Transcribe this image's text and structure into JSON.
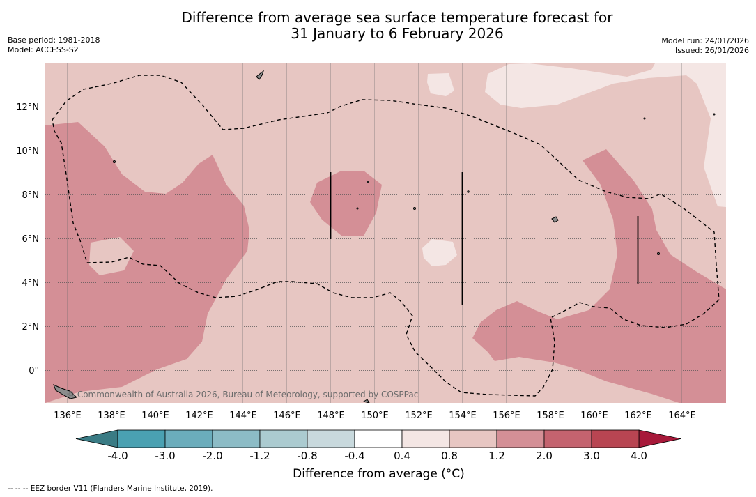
{
  "title": {
    "line1": "Difference from average sea surface temperature forecast for",
    "line2": "31 January to 6 February 2026"
  },
  "meta": {
    "base_period": "Base period: 1981-2018",
    "model": "Model: ACCESS-S2",
    "model_run": "Model run: 24/01/2026",
    "issued": "Issued: 26/01/2026"
  },
  "map": {
    "lon_range": [
      135.0,
      166.0
    ],
    "lat_range": [
      -1.5,
      14.0
    ],
    "lat_ticks": [
      {
        "value": 12,
        "label": "12°N"
      },
      {
        "value": 10,
        "label": "10°N"
      },
      {
        "value": 8,
        "label": "8°N"
      },
      {
        "value": 6,
        "label": "6°N"
      },
      {
        "value": 4,
        "label": "4°N"
      },
      {
        "value": 2,
        "label": "2°N"
      },
      {
        "value": 0,
        "label": "0°"
      }
    ],
    "lon_ticks": [
      {
        "value": 136,
        "label": "136°E"
      },
      {
        "value": 138,
        "label": "138°E"
      },
      {
        "value": 140,
        "label": "140°E"
      },
      {
        "value": 142,
        "label": "142°E"
      },
      {
        "value": 144,
        "label": "144°E"
      },
      {
        "value": 146,
        "label": "146°E"
      },
      {
        "value": 148,
        "label": "148°E"
      },
      {
        "value": 150,
        "label": "150°E"
      },
      {
        "value": 152,
        "label": "152°E"
      },
      {
        "value": 154,
        "label": "154°E"
      },
      {
        "value": 156,
        "label": "156°E"
      },
      {
        "value": 158,
        "label": "158°E"
      },
      {
        "value": 160,
        "label": "160°E"
      },
      {
        "value": 162,
        "label": "162°E"
      },
      {
        "value": 164,
        "label": "164°E"
      }
    ],
    "background_category": "0.8 to 1.2",
    "copyright": "© Commonwealth of Australia 2026, Bureau of Meteorology, supported by COSPPac"
  },
  "colorbar": {
    "title": "Difference from average (°C)",
    "labels": [
      "-4.0",
      "-3.0",
      "-2.0",
      "-1.2",
      "-0.8",
      "-0.4",
      "0.4",
      "0.8",
      "1.2",
      "2.0",
      "3.0",
      "4.0"
    ],
    "under_color": "#3a7b84",
    "over_color": "#a7193a",
    "colors": [
      "#4aa1b2",
      "#6badbc",
      "#8cbcc6",
      "#abcbd0",
      "#c8d9dd",
      "#ffffff",
      "#f4e6e4",
      "#e7c6c2",
      "#d48f96",
      "#c4636f",
      "#b84552"
    ]
  },
  "footnote": "--  --  -- EEZ border V11 (Flanders Marine Institute, 2019)."
}
